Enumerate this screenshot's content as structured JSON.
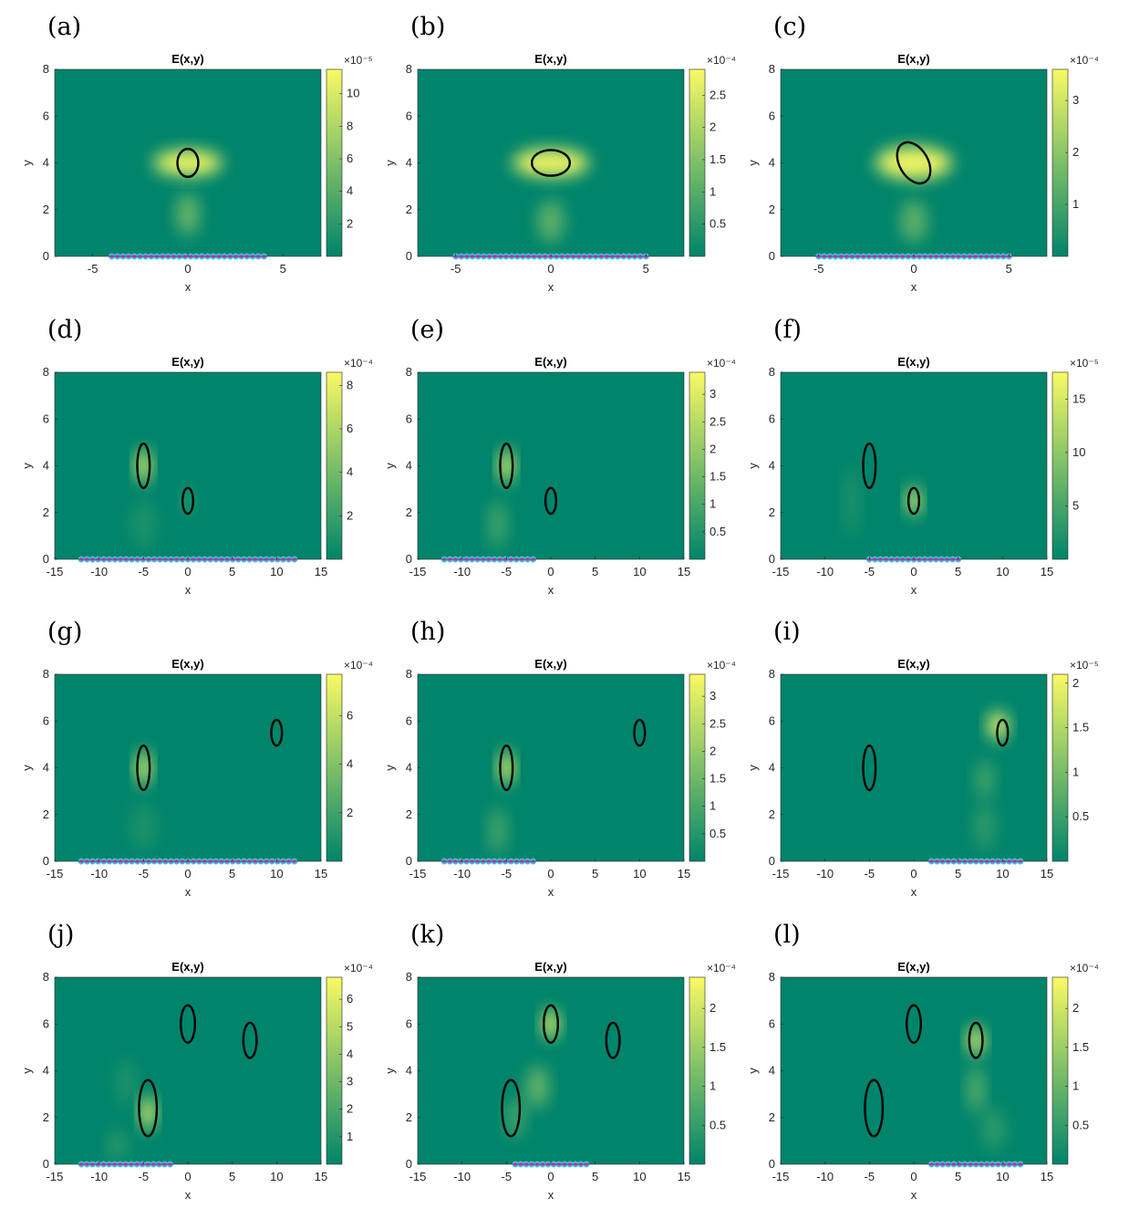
{
  "chart_data": [
    {
      "type": "heatmap",
      "label": "(a)",
      "title": "E(x,y)",
      "xlabel": "x",
      "ylabel": "y",
      "xlim": [
        -7,
        7
      ],
      "ylim": [
        0,
        8
      ],
      "xticks": [
        "-5",
        "0",
        "5"
      ],
      "yticks": [
        "0",
        "2",
        "4",
        "6",
        "8"
      ],
      "colorbar": {
        "exponent": "×10⁻⁵",
        "ticks": [
          "2",
          "4",
          "6",
          "8",
          "10"
        ],
        "tick_values": [
          2,
          4,
          6,
          8,
          10
        ],
        "range": [
          0,
          11.5
        ]
      },
      "sources_x": [
        -4,
        4
      ],
      "curves": [
        {
          "cx": 0,
          "cy": 4,
          "rx": 0.55,
          "ry": 0.6,
          "rot": 0
        }
      ],
      "blobs": [
        {
          "cx": 0,
          "cy": 4,
          "sx": 1.8,
          "sy": 0.55,
          "a": 1
        },
        {
          "cx": 0,
          "cy": 1.8,
          "sx": 0.6,
          "sy": 0.9,
          "a": 0.45
        }
      ]
    },
    {
      "type": "heatmap",
      "label": "(b)",
      "title": "E(x,y)",
      "xlabel": "x",
      "ylabel": "y",
      "xlim": [
        -7,
        7
      ],
      "ylim": [
        0,
        8
      ],
      "xticks": [
        "-5",
        "0",
        "5"
      ],
      "yticks": [
        "0",
        "2",
        "4",
        "6",
        "8"
      ],
      "colorbar": {
        "exponent": "×10⁻⁴",
        "ticks": [
          "0.5",
          "1",
          "1.5",
          "2",
          "2.5"
        ],
        "tick_values": [
          0.5,
          1,
          1.5,
          2,
          2.5
        ],
        "range": [
          0,
          2.9
        ]
      },
      "sources_x": [
        -5,
        5
      ],
      "curves": [
        {
          "cx": 0,
          "cy": 4,
          "rx": 1.0,
          "ry": 0.55,
          "rot": 0
        }
      ],
      "blobs": [
        {
          "cx": 0,
          "cy": 4,
          "sx": 2.0,
          "sy": 0.6,
          "a": 1
        },
        {
          "cx": 0,
          "cy": 1.5,
          "sx": 0.7,
          "sy": 0.9,
          "a": 0.4
        }
      ]
    },
    {
      "type": "heatmap",
      "label": "(c)",
      "title": "E(x,y)",
      "xlabel": "x",
      "ylabel": "y",
      "xlim": [
        -7,
        7
      ],
      "ylim": [
        0,
        8
      ],
      "xticks": [
        "-5",
        "0",
        "5"
      ],
      "yticks": [
        "0",
        "2",
        "4",
        "6",
        "8"
      ],
      "colorbar": {
        "exponent": "×10⁻⁴",
        "ticks": [
          "1",
          "2",
          "3"
        ],
        "tick_values": [
          1,
          2,
          3
        ],
        "range": [
          0,
          3.6
        ]
      },
      "sources_x": [
        -5,
        5
      ],
      "curves": [
        {
          "cx": 0,
          "cy": 4,
          "rx": 0.75,
          "ry": 0.95,
          "rot": 30
        }
      ],
      "blobs": [
        {
          "cx": 0,
          "cy": 4,
          "sx": 2.0,
          "sy": 0.7,
          "a": 1
        },
        {
          "cx": 0,
          "cy": 1.5,
          "sx": 0.7,
          "sy": 0.9,
          "a": 0.4
        }
      ]
    },
    {
      "type": "heatmap",
      "label": "(d)",
      "title": "E(x,y)",
      "xlabel": "x",
      "ylabel": "y",
      "xlim": [
        -15,
        15
      ],
      "ylim": [
        0,
        8
      ],
      "xticks": [
        "-15",
        "-10",
        "-5",
        "0",
        "5",
        "10",
        "15"
      ],
      "yticks": [
        "0",
        "2",
        "4",
        "6",
        "8"
      ],
      "colorbar": {
        "exponent": "×10⁻⁴",
        "ticks": [
          "2",
          "4",
          "6",
          "8"
        ],
        "tick_values": [
          2,
          4,
          6,
          8
        ],
        "range": [
          0,
          8.6
        ]
      },
      "sources_x": [
        -12,
        12
      ],
      "curves": [
        {
          "cx": -5,
          "cy": 4,
          "rx": 0.7,
          "ry": 0.95,
          "rot": 0
        },
        {
          "cx": 0,
          "cy": 2.5,
          "rx": 0.6,
          "ry": 0.55,
          "rot": 0
        }
      ],
      "blobs": [
        {
          "cx": -5,
          "cy": 4,
          "sx": 0.8,
          "sy": 0.7,
          "a": 1
        },
        {
          "cx": 0,
          "cy": 2.5,
          "sx": 0.6,
          "sy": 0.5,
          "a": 0.25
        },
        {
          "cx": -5,
          "cy": 1.5,
          "sx": 1.5,
          "sy": 1.0,
          "a": 0.12
        }
      ]
    },
    {
      "type": "heatmap",
      "label": "(e)",
      "title": "E(x,y)",
      "xlabel": "x",
      "ylabel": "y",
      "xlim": [
        -15,
        15
      ],
      "ylim": [
        0,
        8
      ],
      "xticks": [
        "-15",
        "-10",
        "-5",
        "0",
        "5",
        "10",
        "15"
      ],
      "yticks": [
        "0",
        "2",
        "4",
        "6",
        "8"
      ],
      "colorbar": {
        "exponent": "×10⁻⁴",
        "ticks": [
          "0.5",
          "1",
          "1.5",
          "2",
          "2.5",
          "3"
        ],
        "tick_values": [
          0.5,
          1,
          1.5,
          2,
          2.5,
          3
        ],
        "range": [
          0,
          3.4
        ]
      },
      "sources_x": [
        -12,
        -2
      ],
      "curves": [
        {
          "cx": -5,
          "cy": 4,
          "rx": 0.7,
          "ry": 0.95,
          "rot": 0
        },
        {
          "cx": 0,
          "cy": 2.5,
          "rx": 0.6,
          "ry": 0.55,
          "rot": 0
        }
      ],
      "blobs": [
        {
          "cx": -5,
          "cy": 4,
          "sx": 0.8,
          "sy": 0.7,
          "a": 1
        },
        {
          "cx": -6,
          "cy": 1.5,
          "sx": 1.0,
          "sy": 1.0,
          "a": 0.3
        }
      ]
    },
    {
      "type": "heatmap",
      "label": "(f)",
      "title": "E(x,y)",
      "xlabel": "x",
      "ylabel": "y",
      "xlim": [
        -15,
        15
      ],
      "ylim": [
        0,
        8
      ],
      "xticks": [
        "-15",
        "-10",
        "-5",
        "0",
        "5",
        "10",
        "15"
      ],
      "yticks": [
        "0",
        "2",
        "4",
        "6",
        "8"
      ],
      "colorbar": {
        "exponent": "×10⁻⁵",
        "ticks": [
          "5",
          "10",
          "15"
        ],
        "tick_values": [
          5,
          10,
          15
        ],
        "range": [
          0,
          17.5
        ]
      },
      "sources_x": [
        -5,
        5
      ],
      "curves": [
        {
          "cx": -5,
          "cy": 4,
          "rx": 0.7,
          "ry": 0.95,
          "rot": 0
        },
        {
          "cx": 0,
          "cy": 2.5,
          "rx": 0.6,
          "ry": 0.55,
          "rot": 0
        }
      ],
      "blobs": [
        {
          "cx": 0,
          "cy": 2.5,
          "sx": 0.75,
          "sy": 0.6,
          "a": 1
        },
        {
          "cx": -7,
          "cy": 2.5,
          "sx": 0.8,
          "sy": 1.5,
          "a": 0.15
        }
      ]
    },
    {
      "type": "heatmap",
      "label": "(g)",
      "title": "E(x,y)",
      "xlabel": "x",
      "ylabel": "y",
      "xlim": [
        -15,
        15
      ],
      "ylim": [
        0,
        8
      ],
      "xticks": [
        "-15",
        "-10",
        "-5",
        "0",
        "5",
        "10",
        "15"
      ],
      "yticks": [
        "0",
        "2",
        "4",
        "6",
        "8"
      ],
      "colorbar": {
        "exponent": "×10⁻⁴",
        "ticks": [
          "2",
          "4",
          "6"
        ],
        "tick_values": [
          2,
          4,
          6
        ],
        "range": [
          0,
          7.7
        ]
      },
      "sources_x": [
        -12,
        12
      ],
      "curves": [
        {
          "cx": -5,
          "cy": 4,
          "rx": 0.7,
          "ry": 0.95,
          "rot": 0
        },
        {
          "cx": 10,
          "cy": 5.5,
          "rx": 0.6,
          "ry": 0.55,
          "rot": 0
        }
      ],
      "blobs": [
        {
          "cx": -5,
          "cy": 4,
          "sx": 0.8,
          "sy": 0.7,
          "a": 1
        },
        {
          "cx": -5,
          "cy": 1.5,
          "sx": 1.5,
          "sy": 1.0,
          "a": 0.12
        }
      ]
    },
    {
      "type": "heatmap",
      "label": "(h)",
      "title": "E(x,y)",
      "xlabel": "x",
      "ylabel": "y",
      "xlim": [
        -15,
        15
      ],
      "ylim": [
        0,
        8
      ],
      "xticks": [
        "-15",
        "-10",
        "-5",
        "0",
        "5",
        "10",
        "15"
      ],
      "yticks": [
        "0",
        "2",
        "4",
        "6",
        "8"
      ],
      "colorbar": {
        "exponent": "×10⁻⁴",
        "ticks": [
          "0.5",
          "1",
          "1.5",
          "2",
          "2.5",
          "3"
        ],
        "tick_values": [
          0.5,
          1,
          1.5,
          2,
          2.5,
          3
        ],
        "range": [
          0,
          3.4
        ]
      },
      "sources_x": [
        -12,
        -2
      ],
      "curves": [
        {
          "cx": -5,
          "cy": 4,
          "rx": 0.7,
          "ry": 0.95,
          "rot": 0
        },
        {
          "cx": 10,
          "cy": 5.5,
          "rx": 0.6,
          "ry": 0.55,
          "rot": 0
        }
      ],
      "blobs": [
        {
          "cx": -5,
          "cy": 4,
          "sx": 0.8,
          "sy": 0.7,
          "a": 1
        },
        {
          "cx": -6,
          "cy": 1.3,
          "sx": 1.0,
          "sy": 1.0,
          "a": 0.3
        }
      ]
    },
    {
      "type": "heatmap",
      "label": "(i)",
      "title": "E(x,y)",
      "xlabel": "x",
      "ylabel": "y",
      "xlim": [
        -15,
        15
      ],
      "ylim": [
        0,
        8
      ],
      "xticks": [
        "-15",
        "-10",
        "-5",
        "0",
        "5",
        "10",
        "15"
      ],
      "yticks": [
        "0",
        "2",
        "4",
        "6",
        "8"
      ],
      "colorbar": {
        "exponent": "×10⁻⁵",
        "ticks": [
          "0.5",
          "1",
          "1.5",
          "2"
        ],
        "tick_values": [
          0.5,
          1,
          1.5,
          2
        ],
        "range": [
          0,
          2.1
        ]
      },
      "sources_x": [
        2,
        12
      ],
      "curves": [
        {
          "cx": -5,
          "cy": 4,
          "rx": 0.7,
          "ry": 0.95,
          "rot": 0
        },
        {
          "cx": 10,
          "cy": 5.5,
          "rx": 0.6,
          "ry": 0.55,
          "rot": 0
        }
      ],
      "blobs": [
        {
          "cx": 9.5,
          "cy": 5.8,
          "sx": 1.1,
          "sy": 0.6,
          "a": 1
        },
        {
          "cx": 8,
          "cy": 3.5,
          "sx": 1.0,
          "sy": 0.8,
          "a": 0.3
        },
        {
          "cx": 8,
          "cy": 1.5,
          "sx": 1.2,
          "sy": 1.0,
          "a": 0.2
        }
      ]
    },
    {
      "type": "heatmap",
      "label": "(j)",
      "title": "E(x,y)",
      "xlabel": "x",
      "ylabel": "y",
      "xlim": [
        -15,
        15
      ],
      "ylim": [
        0,
        8
      ],
      "xticks": [
        "-15",
        "-10",
        "-5",
        "0",
        "5",
        "10",
        "15"
      ],
      "yticks": [
        "0",
        "2",
        "4",
        "6",
        "8"
      ],
      "colorbar": {
        "exponent": "×10⁻⁴",
        "ticks": [
          "1",
          "2",
          "3",
          "4",
          "5",
          "6"
        ],
        "tick_values": [
          1,
          2,
          3,
          4,
          5,
          6
        ],
        "range": [
          0,
          6.8
        ]
      },
      "sources_x": [
        -12,
        -2
      ],
      "curves": [
        {
          "cx": 0,
          "cy": 6,
          "rx": 0.8,
          "ry": 0.8,
          "rot": 0
        },
        {
          "cx": 7,
          "cy": 5.3,
          "rx": 0.75,
          "ry": 0.75,
          "rot": 0
        },
        {
          "cx": -4.5,
          "cy": 2.4,
          "rx": 1.0,
          "ry": 1.2,
          "rot": 0
        }
      ],
      "blobs": [
        {
          "cx": -4.5,
          "cy": 2.2,
          "sx": 0.8,
          "sy": 0.7,
          "a": 1
        },
        {
          "cx": -7,
          "cy": 3.5,
          "sx": 1.0,
          "sy": 1.0,
          "a": 0.15
        },
        {
          "cx": -8,
          "cy": 0.8,
          "sx": 1.0,
          "sy": 0.7,
          "a": 0.2
        }
      ]
    },
    {
      "type": "heatmap",
      "label": "(k)",
      "title": "E(x,y)",
      "xlabel": "x",
      "ylabel": "y",
      "xlim": [
        -15,
        15
      ],
      "ylim": [
        0,
        8
      ],
      "xticks": [
        "-15",
        "-10",
        "-5",
        "0",
        "5",
        "10",
        "15"
      ],
      "yticks": [
        "0",
        "2",
        "4",
        "6",
        "8"
      ],
      "colorbar": {
        "exponent": "×10⁻⁴",
        "ticks": [
          "0.5",
          "1",
          "1.5",
          "2"
        ],
        "tick_values": [
          0.5,
          1,
          1.5,
          2
        ],
        "range": [
          0,
          2.4
        ]
      },
      "sources_x": [
        -4,
        4
      ],
      "curves": [
        {
          "cx": 0,
          "cy": 6,
          "rx": 0.8,
          "ry": 0.8,
          "rot": 0
        },
        {
          "cx": 7,
          "cy": 5.3,
          "rx": 0.75,
          "ry": 0.75,
          "rot": 0
        },
        {
          "cx": -4.5,
          "cy": 2.4,
          "rx": 1.0,
          "ry": 1.2,
          "rot": 0
        }
      ],
      "blobs": [
        {
          "cx": 0,
          "cy": 6,
          "sx": 0.9,
          "sy": 0.6,
          "a": 1
        },
        {
          "cx": -1.5,
          "cy": 3.3,
          "sx": 1.2,
          "sy": 0.9,
          "a": 0.45
        },
        {
          "cx": -4,
          "cy": 2,
          "sx": 1.0,
          "sy": 0.9,
          "a": 0.3
        }
      ]
    },
    {
      "type": "heatmap",
      "label": "(l)",
      "title": "E(x,y)",
      "xlabel": "x",
      "ylabel": "y",
      "xlim": [
        -15,
        15
      ],
      "ylim": [
        0,
        8
      ],
      "xticks": [
        "-15",
        "-10",
        "-5",
        "0",
        "5",
        "10",
        "15"
      ],
      "yticks": [
        "0",
        "2",
        "4",
        "6",
        "8"
      ],
      "colorbar": {
        "exponent": "×10⁻⁴",
        "ticks": [
          "0.5",
          "1",
          "1.5",
          "2"
        ],
        "tick_values": [
          0.5,
          1,
          1.5,
          2
        ],
        "range": [
          0,
          2.4
        ]
      },
      "sources_x": [
        2,
        12
      ],
      "curves": [
        {
          "cx": 0,
          "cy": 6,
          "rx": 0.8,
          "ry": 0.8,
          "rot": 0
        },
        {
          "cx": 7,
          "cy": 5.3,
          "rx": 0.75,
          "ry": 0.75,
          "rot": 0
        },
        {
          "cx": -4.5,
          "cy": 2.4,
          "rx": 1.0,
          "ry": 1.2,
          "rot": 0
        }
      ],
      "blobs": [
        {
          "cx": 7,
          "cy": 5.3,
          "sx": 0.9,
          "sy": 0.6,
          "a": 1
        },
        {
          "cx": 7,
          "cy": 3.2,
          "sx": 0.9,
          "sy": 1.0,
          "a": 0.4
        },
        {
          "cx": 9,
          "cy": 1.5,
          "sx": 1.3,
          "sy": 0.9,
          "a": 0.2
        }
      ]
    }
  ],
  "colors": {
    "low": "#00846b",
    "high": "#fafa64",
    "curve": "#000000",
    "source_fill": "#e040e0",
    "source_edge": "#30d0d0"
  }
}
